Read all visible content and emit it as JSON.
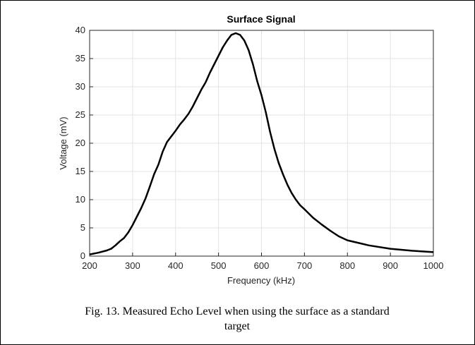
{
  "chart_data": {
    "type": "line",
    "title": "Surface Signal",
    "xlabel": "Frequency (kHz)",
    "ylabel": "Voltage (mV)",
    "caption": [
      "Fig. 13.  Measured Echo Level when using the surface as a standard",
      "target"
    ],
    "x": [
      200,
      220,
      240,
      250,
      260,
      270,
      280,
      290,
      300,
      310,
      320,
      330,
      340,
      350,
      360,
      370,
      380,
      390,
      400,
      410,
      420,
      430,
      440,
      450,
      460,
      470,
      480,
      490,
      500,
      510,
      520,
      530,
      540,
      550,
      560,
      570,
      580,
      590,
      600,
      610,
      620,
      630,
      640,
      650,
      660,
      670,
      680,
      690,
      700,
      720,
      740,
      760,
      780,
      800,
      850,
      900,
      950,
      1000
    ],
    "series": [
      {
        "name": "Surface Signal",
        "color": "#000000",
        "values": [
          0.3,
          0.6,
          1.0,
          1.3,
          1.9,
          2.6,
          3.2,
          4.2,
          5.5,
          7.0,
          8.5,
          10.2,
          12.3,
          14.5,
          16.2,
          18.5,
          20.2,
          21.2,
          22.2,
          23.3,
          24.2,
          25.2,
          26.5,
          28.0,
          29.5,
          30.8,
          32.5,
          34.0,
          35.5,
          37.0,
          38.2,
          39.2,
          39.5,
          39.2,
          38.2,
          36.5,
          34.0,
          31.0,
          28.5,
          25.5,
          22.0,
          19.0,
          16.5,
          14.5,
          12.7,
          11.2,
          10.0,
          9.0,
          8.3,
          6.8,
          5.6,
          4.5,
          3.5,
          2.8,
          1.9,
          1.3,
          0.95,
          0.7
        ]
      }
    ],
    "xlim": [
      200,
      1000
    ],
    "xticks": [
      200,
      300,
      400,
      500,
      600,
      700,
      800,
      900,
      1000
    ],
    "ylim": [
      0,
      40
    ],
    "yticks": [
      0,
      5,
      10,
      15,
      20,
      25,
      30,
      35,
      40
    ],
    "grid": true
  }
}
